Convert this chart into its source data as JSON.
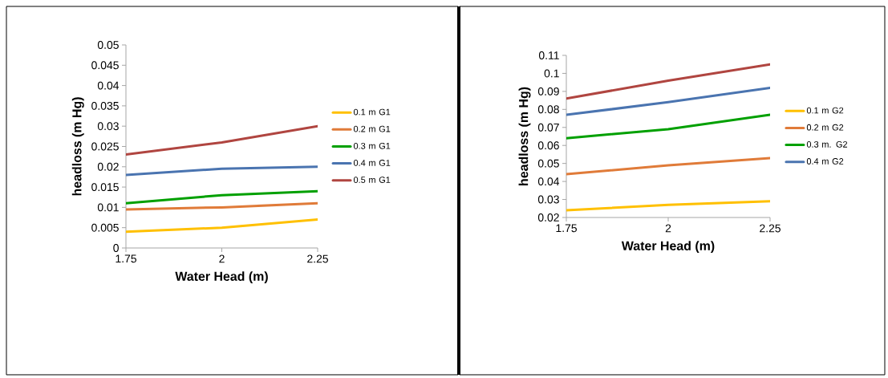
{
  "chart_data": [
    {
      "type": "line",
      "xlabel": "Water Head (m)",
      "ylabel": "headloss (m Hg)",
      "categories": [
        "1.75",
        "2",
        "2.25"
      ],
      "ylim": [
        0,
        0.05
      ],
      "yticks": [
        0,
        0.005,
        0.01,
        0.015,
        0.02,
        0.025,
        0.03,
        0.035,
        0.04,
        0.045,
        0.05
      ],
      "legend": "right",
      "series": [
        {
          "name": "0.1 m G1",
          "color": "#ffc000",
          "values": [
            0.004,
            0.005,
            0.007
          ]
        },
        {
          "name": "0.2 m G1",
          "color": "#e07b39",
          "values": [
            0.0095,
            0.01,
            0.011
          ]
        },
        {
          "name": "0.3 m G1",
          "color": "#00a000",
          "values": [
            0.011,
            0.013,
            0.014
          ]
        },
        {
          "name": "0.4 m G1",
          "color": "#4a74b0",
          "values": [
            0.018,
            0.0195,
            0.02
          ]
        },
        {
          "name": "0.5 m G1",
          "color": "#b04540",
          "values": [
            0.023,
            0.026,
            0.03
          ]
        }
      ]
    },
    {
      "type": "line",
      "xlabel": "Water Head (m)",
      "ylabel": "headloss (m Hg)",
      "categories": [
        "1.75",
        "2",
        "2.25"
      ],
      "ylim": [
        0.02,
        0.11
      ],
      "yticks": [
        0.02,
        0.03,
        0.04,
        0.05,
        0.06,
        0.07,
        0.08,
        0.09,
        0.1,
        0.11
      ],
      "legend": "right",
      "series": [
        {
          "name": "0.1 m G2",
          "color": "#ffc000",
          "values": [
            0.024,
            0.027,
            0.029
          ]
        },
        {
          "name": "0.2 m G2",
          "color": "#e07b39",
          "values": [
            0.044,
            0.049,
            0.053
          ]
        },
        {
          "name": "0.3 m. G2",
          "color": "#00a000",
          "values": [
            0.064,
            0.069,
            0.077
          ]
        },
        {
          "name": "0.4 m G2",
          "color": "#4a74b0",
          "values": [
            0.077,
            0.084,
            0.092
          ]
        },
        {
          "color": "#b04540",
          "values": [
            0.086,
            0.096,
            0.105
          ]
        }
      ]
    }
  ]
}
